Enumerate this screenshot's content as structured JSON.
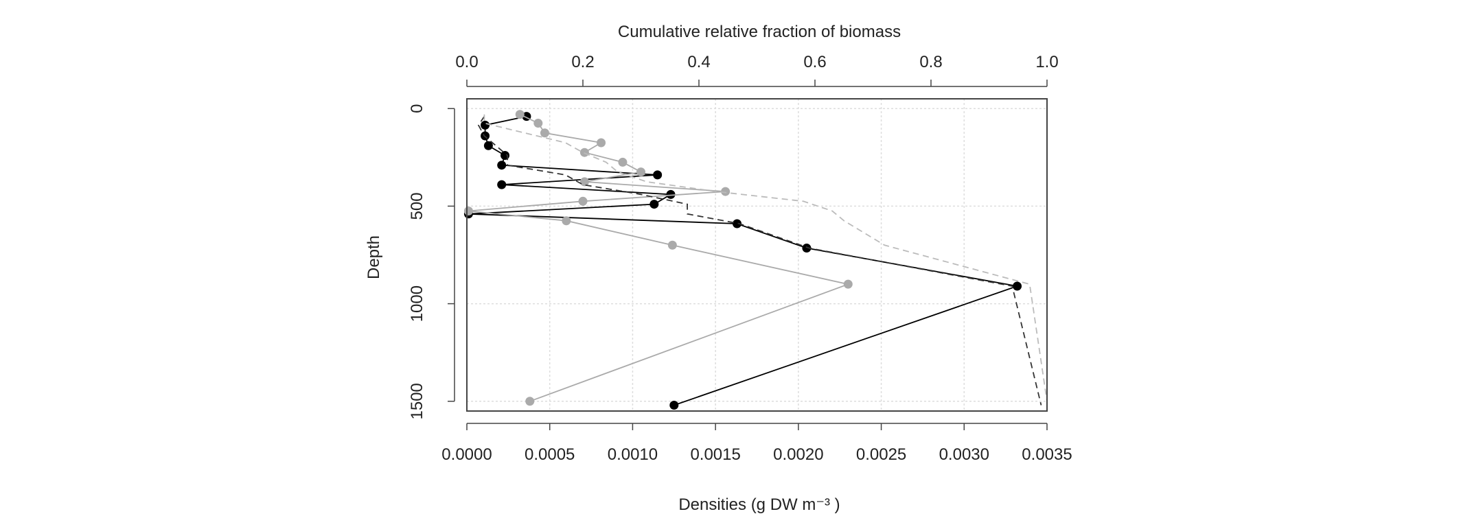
{
  "chart_data": {
    "type": "line",
    "title": "",
    "xlabel": "Densities (g DW m⁻³ )",
    "x2label": "Cumulative relative fraction of biomass",
    "ylabel": "Depth",
    "xlim": [
      0,
      0.0035
    ],
    "x2lim": [
      0,
      1
    ],
    "ylim": [
      1550,
      -50
    ],
    "y_reversed": true,
    "grid": true,
    "legend": "none",
    "x_ticks": [
      0,
      0.0005,
      0.001,
      0.0015,
      0.002,
      0.0025,
      0.003,
      0.0035
    ],
    "x_tick_labels": [
      "0.0000",
      "0.0005",
      "0.0010",
      "0.0015",
      "0.0020",
      "0.0025",
      "0.0030",
      "0.0035"
    ],
    "x2_ticks": [
      0,
      0.2,
      0.4,
      0.6,
      0.8,
      1
    ],
    "x2_tick_labels": [
      "0.0",
      "0.2",
      "0.4",
      "0.6",
      "0.8",
      "1.0"
    ],
    "y_ticks": [
      0,
      500,
      1000,
      1500
    ],
    "y_tick_labels": [
      "0",
      "500",
      "1000",
      "1500"
    ],
    "series": [
      {
        "color": "#000000",
        "style": "solid-points",
        "axis": "bottom",
        "x": [
          0.00036,
          0.00011,
          0.00011,
          0.00013,
          0.00023,
          0.00021,
          0.00115,
          0.00021,
          0.00123,
          0.00113,
          1e-05,
          0.00163,
          0.00205,
          0.00332,
          0.00125
        ],
        "y": [
          40,
          85,
          140,
          190,
          240,
          290,
          340,
          390,
          440,
          490,
          540,
          590,
          715,
          910,
          1520
        ]
      },
      {
        "color": "#aaaaaa",
        "style": "solid-points",
        "axis": "bottom",
        "x": [
          0.00032,
          0.00043,
          0.00047,
          0.00081,
          0.00071,
          0.00094,
          0.00105,
          0.00071,
          0.00156,
          0.0007,
          1e-05,
          0.0006,
          0.00124,
          0.0023,
          0.00038
        ],
        "y": [
          30,
          75,
          125,
          175,
          225,
          275,
          325,
          375,
          425,
          475,
          525,
          575,
          700,
          900,
          1500
        ]
      },
      {
        "color": "#333333",
        "style": "dashed",
        "axis": "top",
        "x": [
          0.03,
          0.02,
          0.03,
          0.05,
          0.07,
          0.07,
          0.17,
          0.2,
          0.3,
          0.38,
          0.38,
          0.47,
          0.59,
          0.94,
          0.99
        ],
        "y": [
          40,
          85,
          140,
          190,
          240,
          290,
          340,
          390,
          440,
          490,
          540,
          590,
          715,
          910,
          1520
        ]
      },
      {
        "color": "#bbbbbb",
        "style": "dashed",
        "axis": "top",
        "x": [
          0.03,
          0.03,
          0.1,
          0.17,
          0.2,
          0.24,
          0.26,
          0.31,
          0.43,
          0.58,
          0.63,
          0.65,
          0.72,
          0.97,
          1.0
        ],
        "y": [
          30,
          75,
          125,
          175,
          225,
          275,
          325,
          375,
          425,
          475,
          525,
          575,
          700,
          900,
          1500
        ]
      }
    ]
  }
}
